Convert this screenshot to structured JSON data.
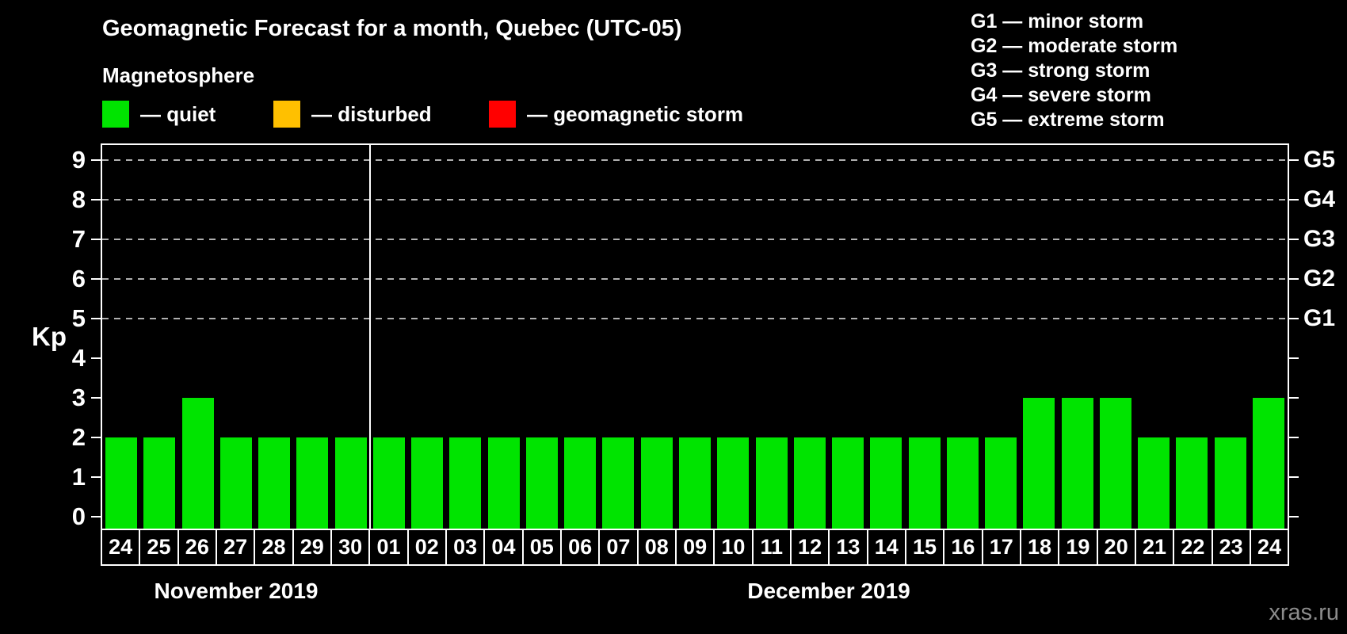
{
  "title": "Geomagnetic Forecast for a month, Quebec (UTC-05)",
  "subtitle": "Magnetosphere",
  "legend": {
    "items": [
      {
        "name": "quiet",
        "label": "— quiet",
        "color": "#00e400"
      },
      {
        "name": "disturbed",
        "label": "— disturbed",
        "color": "#ffc000"
      },
      {
        "name": "geomagnetic-storm",
        "label": "— geomagnetic storm",
        "color": "#ff0000"
      }
    ]
  },
  "storm_scale_legend": [
    "G1 — minor storm",
    "G2 — moderate storm",
    "G3 — strong storm",
    "G4 — severe storm",
    "G5 — extreme storm"
  ],
  "watermark": "xras.ru",
  "colors": {
    "background": "#000000",
    "axis": "#ffffff",
    "gridline": "#b0b0b0",
    "watermark": "#8c8c8c"
  },
  "chart_data": {
    "type": "bar",
    "ylabel": "Kp",
    "bar_color": "#00e400",
    "ylim": [
      -0.3,
      9.38
    ],
    "yticks": [
      "0",
      "1",
      "2",
      "3",
      "4",
      "5",
      "6",
      "7",
      "8",
      "9"
    ],
    "gridlines_at": [
      5,
      6,
      7,
      8,
      9
    ],
    "grid": "dashed-horizontal-at-storm-levels-only",
    "right_axis_labels": [
      {
        "value": 5,
        "label": "G1"
      },
      {
        "value": 6,
        "label": "G2"
      },
      {
        "value": 7,
        "label": "G3"
      },
      {
        "value": 8,
        "label": "G4"
      },
      {
        "value": 9,
        "label": "G5"
      }
    ],
    "groups": [
      {
        "month": "November 2019",
        "categories": [
          "24",
          "25",
          "26",
          "27",
          "28",
          "29",
          "30"
        ],
        "values": [
          2,
          2,
          3,
          2,
          2,
          2,
          2
        ]
      },
      {
        "month": "December 2019",
        "categories": [
          "01",
          "02",
          "03",
          "04",
          "05",
          "06",
          "07",
          "08",
          "09",
          "10",
          "11",
          "12",
          "13",
          "14",
          "15",
          "16",
          "17",
          "18",
          "19",
          "20",
          "21",
          "22",
          "23",
          "24"
        ],
        "values": [
          2,
          2,
          2,
          2,
          2,
          2,
          2,
          2,
          2,
          2,
          2,
          2,
          2,
          2,
          2,
          2,
          2,
          3,
          3,
          3,
          2,
          2,
          2,
          3
        ]
      }
    ]
  }
}
